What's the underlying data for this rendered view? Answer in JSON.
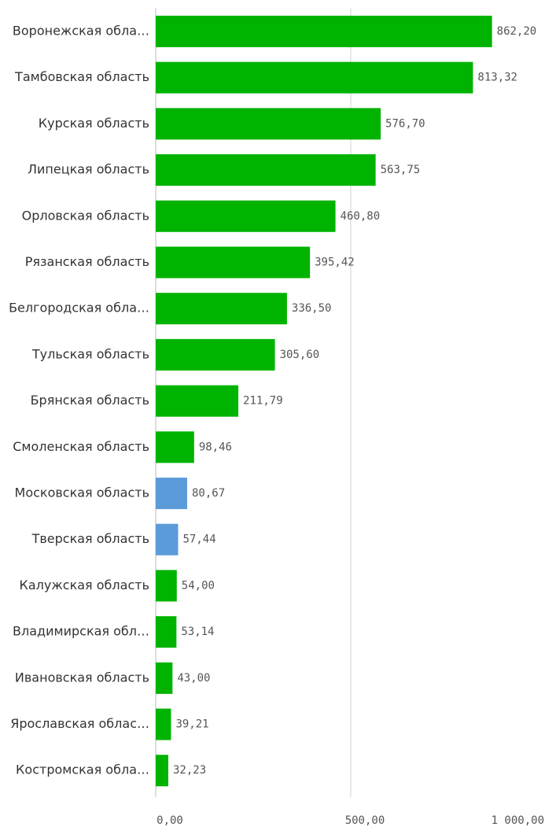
{
  "chart_data": {
    "type": "barh",
    "categories": [
      "Воронежская обла…",
      "Тамбовская область",
      "Курская область",
      "Липецкая область",
      "Орловская область",
      "Рязанская область",
      "Белгородская обла…",
      "Тульская область",
      "Брянская область",
      "Смоленская область",
      "Московская область",
      "Тверская область",
      "Калужская область",
      "Владимирская обл…",
      "Ивановская область",
      "Ярославская облас…",
      "Костромская обла…"
    ],
    "values": [
      862.2,
      813.32,
      576.7,
      563.75,
      460.8,
      395.42,
      336.5,
      305.6,
      211.79,
      98.46,
      80.67,
      57.44,
      54.0,
      53.14,
      43.0,
      39.21,
      32.23
    ],
    "value_labels": [
      "862,20",
      "813,32",
      "576,70",
      "563,75",
      "460,80",
      "395,42",
      "336,50",
      "305,60",
      "211,79",
      "98,46",
      "80,67",
      "57,44",
      "54,00",
      "53,14",
      "43,00",
      "39,21",
      "32,23"
    ],
    "colors": [
      "#00b300",
      "#00b300",
      "#00b300",
      "#00b300",
      "#00b300",
      "#00b300",
      "#00b300",
      "#00b300",
      "#00b300",
      "#00b300",
      "#5b9bd9",
      "#5b9bd9",
      "#00b300",
      "#00b300",
      "#00b300",
      "#00b300",
      "#00b300"
    ],
    "xlim": [
      0,
      1000
    ],
    "xticks": [
      {
        "value": 0,
        "label": "0,00"
      },
      {
        "value": 500,
        "label": "500,00"
      },
      {
        "value": 1000,
        "label": "1 000,00"
      }
    ],
    "grid": true
  }
}
